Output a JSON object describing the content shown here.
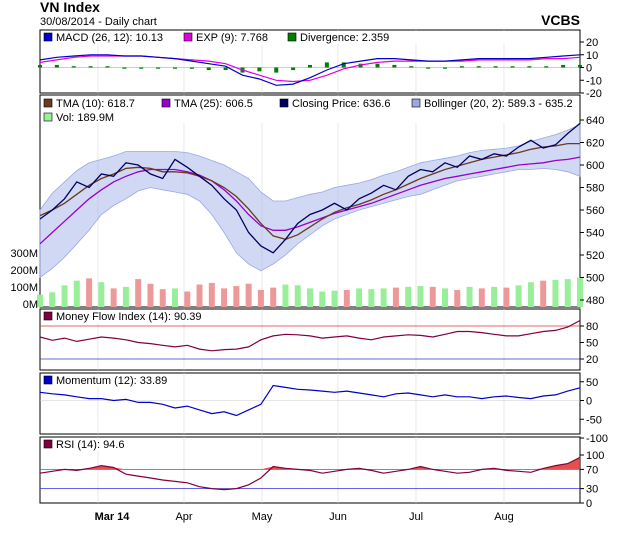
{
  "header": {
    "title": "VN Index",
    "subtitle": "30/08/2014 - Daily chart",
    "brand": "VCBS"
  },
  "colors": {
    "macd": "#0000cc",
    "exp": "#e000e0",
    "divergence": "#008000",
    "tma10": "#6b3a1f",
    "tma25": "#9900cc",
    "close": "#000060",
    "bollinger": "#9aa8e6",
    "vol_up": "#99ee99",
    "vol_down": "#ee9999",
    "mfi": "#800040",
    "momentum": "#0000cc",
    "rsi": "#800040",
    "rsi_fill": "#e03030"
  },
  "chart_data": [
    {
      "panel": "macd",
      "type": "line",
      "legend": [
        {
          "label": "MACD (26, 12): 10.13",
          "color": "#0000cc"
        },
        {
          "label": "EXP (9): 7.768",
          "color": "#e000e0"
        },
        {
          "label": "Divergence: 2.359",
          "color": "#008000"
        }
      ],
      "yticks": [
        20,
        10,
        0,
        -10,
        -20
      ],
      "ylim": [
        -20,
        20
      ],
      "series": [
        {
          "name": "MACD (26, 12)",
          "values": [
            6,
            8,
            9,
            10,
            10,
            9,
            9,
            8,
            7,
            5,
            3,
            1,
            -6,
            -9,
            -14,
            -13,
            -8,
            -2,
            3,
            5,
            7,
            7,
            6,
            5,
            5,
            6,
            7,
            7,
            7,
            7,
            8,
            9,
            10
          ]
        },
        {
          "name": "EXP (9)",
          "values": [
            4,
            6,
            8,
            9,
            9,
            9,
            9,
            8,
            7,
            6,
            5,
            3,
            -2,
            -6,
            -10,
            -11,
            -10,
            -6,
            -1,
            2,
            4,
            5,
            5,
            5,
            5,
            5,
            6,
            6,
            6,
            6,
            7,
            7,
            8
          ]
        },
        {
          "name": "Divergence",
          "values": [
            2,
            2,
            1,
            1,
            1,
            0,
            0,
            0,
            0,
            -1,
            -2,
            -2,
            -4,
            -3,
            -4,
            -2,
            2,
            4,
            4,
            3,
            3,
            2,
            1,
            0,
            0,
            1,
            1,
            1,
            1,
            1,
            1,
            2,
            2
          ]
        }
      ]
    },
    {
      "panel": "price",
      "type": "line",
      "legend": [
        {
          "label": "TMA (10): 618.7",
          "color": "#6b3a1f"
        },
        {
          "label": "TMA (25): 606.5",
          "color": "#9900cc"
        },
        {
          "label": "Closing Price: 636.6",
          "color": "#000060"
        },
        {
          "label": "Bollinger (20, 2): 589.3 - 635.2",
          "color": "#9aa8e6"
        },
        {
          "label": "Vol: 189.9M",
          "color": "#99ee99"
        }
      ],
      "yticks": [
        640,
        620,
        600,
        580,
        560,
        540,
        520,
        500,
        480
      ],
      "ylim": [
        480,
        640
      ],
      "vol_ticks": [
        "300M",
        "200M",
        "100M",
        "0M"
      ],
      "vol_lim": [
        0,
        400
      ],
      "close": [
        552,
        560,
        570,
        585,
        580,
        592,
        590,
        602,
        600,
        592,
        588,
        605,
        598,
        590,
        582,
        570,
        560,
        540,
        528,
        522,
        534,
        548,
        556,
        560,
        566,
        560,
        570,
        575,
        582,
        578,
        590,
        596,
        594,
        602,
        598,
        608,
        605,
        610,
        608,
        616,
        622,
        615,
        618,
        628,
        637
      ],
      "tma10": [
        555,
        560,
        566,
        574,
        582,
        588,
        592,
        597,
        598,
        597,
        594,
        594,
        593,
        590,
        586,
        580,
        572,
        561,
        548,
        537,
        534,
        538,
        545,
        552,
        558,
        562,
        565,
        569,
        574,
        578,
        583,
        588,
        592,
        596,
        599,
        602,
        605,
        607,
        609,
        611,
        614,
        616,
        617,
        619,
        619
      ],
      "tma25": [
        530,
        540,
        550,
        560,
        570,
        578,
        585,
        590,
        594,
        596,
        596,
        596,
        594,
        591,
        586,
        578,
        568,
        556,
        546,
        542,
        542,
        545,
        549,
        553,
        557,
        560,
        563,
        566,
        570,
        574,
        578,
        582,
        585,
        588,
        590,
        592,
        594,
        596,
        598,
        600,
        601,
        602,
        604,
        605,
        607
      ],
      "boll_upper": [
        560,
        575,
        585,
        595,
        602,
        605,
        608,
        612,
        612,
        612,
        612,
        612,
        611,
        608,
        604,
        600,
        594,
        588,
        576,
        568,
        568,
        571,
        574,
        576,
        580,
        582,
        584,
        587,
        591,
        594,
        598,
        602,
        604,
        606,
        608,
        611,
        613,
        614,
        615,
        617,
        621,
        624,
        627,
        631,
        636
      ],
      "boll_lower": [
        500,
        508,
        518,
        530,
        542,
        556,
        564,
        570,
        577,
        580,
        578,
        576,
        574,
        568,
        556,
        540,
        522,
        512,
        506,
        512,
        520,
        530,
        538,
        546,
        552,
        556,
        560,
        563,
        566,
        569,
        572,
        574,
        578,
        582,
        586,
        588,
        590,
        592,
        594,
        596,
        596,
        597,
        596,
        594,
        590
      ],
      "volume": [
        80,
        95,
        140,
        170,
        185,
        160,
        120,
        130,
        180,
        150,
        115,
        120,
        100,
        145,
        155,
        120,
        135,
        150,
        110,
        125,
        145,
        140,
        120,
        100,
        105,
        110,
        120,
        115,
        120,
        125,
        130,
        135,
        130,
        120,
        110,
        130,
        120,
        130,
        125,
        140,
        160,
        170,
        175,
        180,
        190
      ]
    },
    {
      "panel": "mfi",
      "type": "line",
      "legend": [
        {
          "label": "Money Flow Index (14): 90.39",
          "color": "#800040"
        }
      ],
      "yticks": [
        80,
        50,
        20
      ],
      "ylim": [
        0,
        100
      ],
      "values": [
        60,
        54,
        58,
        52,
        56,
        60,
        58,
        55,
        50,
        48,
        45,
        42,
        45,
        38,
        35,
        37,
        38,
        42,
        55,
        62,
        65,
        64,
        62,
        58,
        60,
        62,
        58,
        55,
        60,
        62,
        64,
        63,
        60,
        65,
        70,
        70,
        68,
        65,
        62,
        62,
        66,
        70,
        72,
        78,
        90
      ]
    },
    {
      "panel": "momentum",
      "type": "line",
      "legend": [
        {
          "label": "Momentum (12): 33.89",
          "color": "#0000cc"
        }
      ],
      "yticks": [
        50,
        0,
        -50,
        -100
      ],
      "ylim": [
        -100,
        60
      ],
      "values": [
        22,
        18,
        15,
        10,
        5,
        5,
        0,
        3,
        -5,
        -5,
        -10,
        -20,
        -15,
        -25,
        -35,
        -30,
        -40,
        -25,
        -10,
        40,
        35,
        30,
        28,
        25,
        22,
        25,
        20,
        15,
        10,
        18,
        20,
        15,
        10,
        15,
        10,
        10,
        5,
        10,
        12,
        8,
        5,
        12,
        15,
        25,
        34
      ]
    },
    {
      "panel": "rsi",
      "type": "line",
      "legend": [
        {
          "label": "RSI (14): 94.6",
          "color": "#800040"
        }
      ],
      "yticks": [
        100,
        70,
        30,
        0
      ],
      "ylim": [
        0,
        100
      ],
      "values": [
        62,
        66,
        70,
        68,
        72,
        78,
        74,
        60,
        56,
        52,
        48,
        45,
        42,
        34,
        30,
        28,
        30,
        38,
        52,
        76,
        72,
        70,
        68,
        62,
        66,
        70,
        72,
        68,
        62,
        66,
        70,
        76,
        70,
        66,
        62,
        64,
        70,
        72,
        68,
        66,
        64,
        72,
        78,
        82,
        95
      ]
    }
  ],
  "x_axis": {
    "labels": [
      "Mar 14",
      "Apr",
      "May",
      "Jun",
      "Jul",
      "Aug"
    ]
  }
}
